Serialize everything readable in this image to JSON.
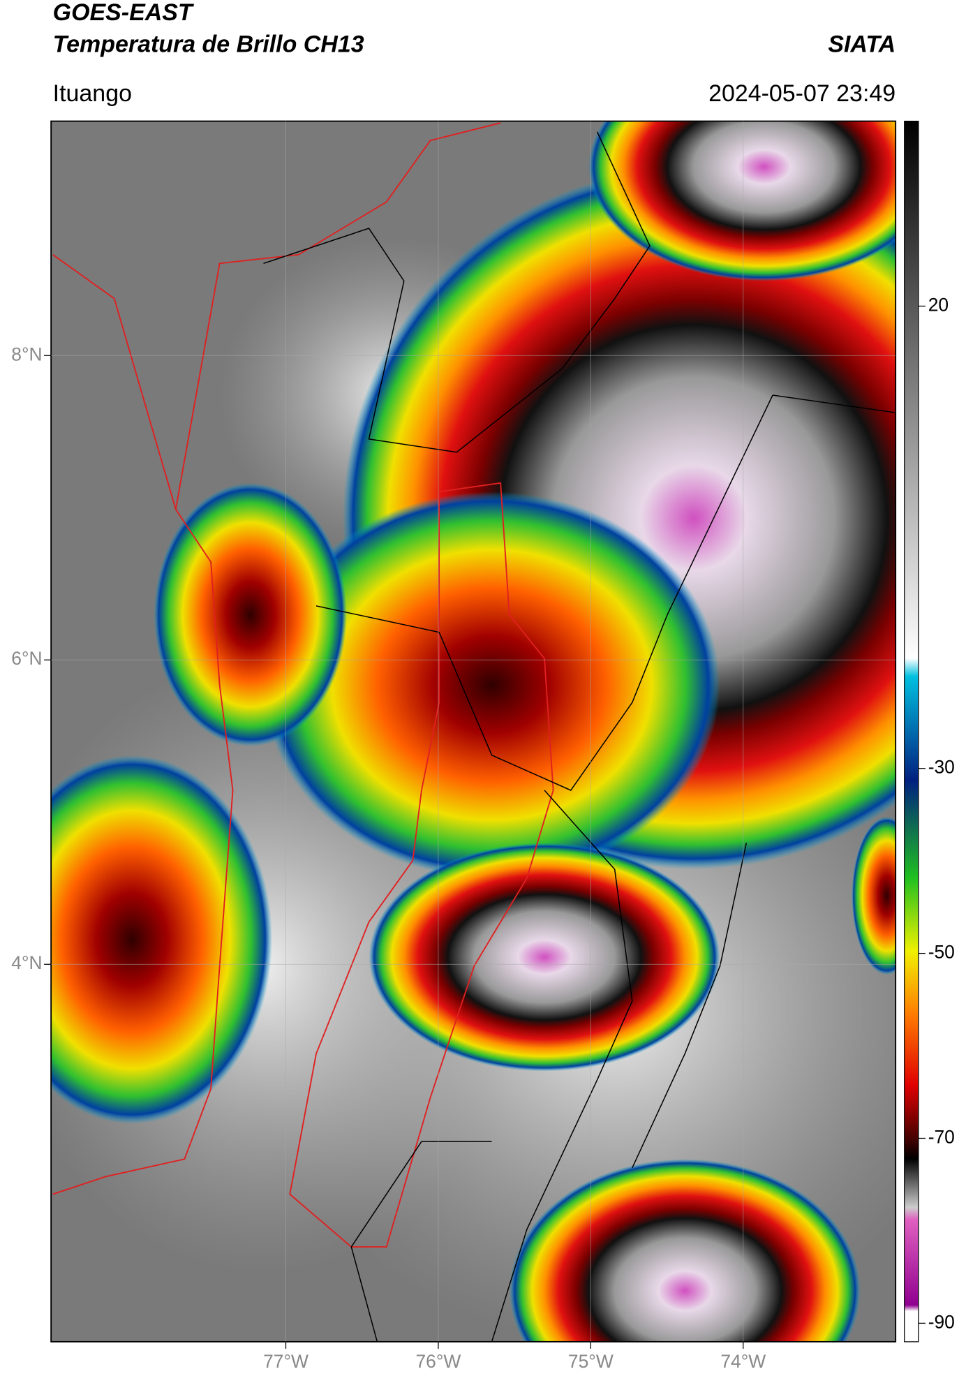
{
  "header": {
    "title_line1": "GOES-EAST",
    "title_line2": "Temperatura de Brillo CH13",
    "brand": "SIATA",
    "location": "Ituango",
    "datetime": "2024-05-07 23:49"
  },
  "map": {
    "xlim": [
      -78.54,
      -73.0
    ],
    "ylim": [
      1.52,
      9.54
    ],
    "xticks": [
      {
        "value": -77,
        "label": "77°W"
      },
      {
        "value": -76,
        "label": "76°W"
      },
      {
        "value": -75,
        "label": "75°W"
      },
      {
        "value": -74,
        "label": "74°W"
      }
    ],
    "yticks": [
      {
        "value": 8,
        "label": "8°N"
      },
      {
        "value": 6,
        "label": "6°N"
      },
      {
        "value": 4,
        "label": "4°N"
      }
    ]
  },
  "colorbar": {
    "lim": [
      -92,
      40
    ],
    "ticks": [
      20,
      -30,
      -50,
      -70,
      -90
    ]
  }
}
